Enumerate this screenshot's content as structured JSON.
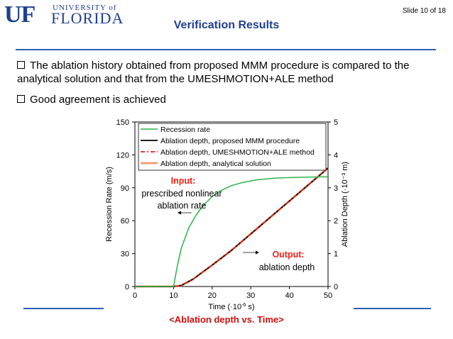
{
  "header": {
    "logo_uf": "UF",
    "logo_university": "UNIVERSITY of",
    "logo_florida": "FLORIDA",
    "slide_number": "Slide 10 of 18",
    "title": "Verification Results"
  },
  "bullets": [
    "The ablation history obtained from proposed MMM procedure is compared to the analytical solution and that from the UMESHMOTION+ALE method",
    "Good agreement is achieved"
  ],
  "chart_data": {
    "type": "line",
    "xlabel_main": "Time (",
    "xlabel_unit": "·10",
    "xlabel_exp": "-6",
    "xlabel_end": " s)",
    "ylabel": "Recession Rate (m/s)",
    "y2label": "Ablation Depth (·10⁻³ m)",
    "xlim": [
      0,
      50
    ],
    "ylim": [
      0,
      150
    ],
    "y2lim": [
      0,
      5
    ],
    "x_ticks": [
      "0",
      "10",
      "20",
      "30",
      "40",
      "50"
    ],
    "y_ticks": [
      "0",
      "30",
      "60",
      "90",
      "120",
      "150"
    ],
    "y2_ticks": [
      "0",
      "1",
      "2",
      "3",
      "4",
      "5"
    ],
    "legend_position": "top-right",
    "series": [
      {
        "name": "Recession rate",
        "axis": "left",
        "color": "#2db34a",
        "x": [
          0,
          10,
          11,
          12,
          14,
          16,
          18,
          20,
          22,
          25,
          28,
          32,
          36,
          40,
          45,
          50
        ],
        "y": [
          0,
          0,
          19,
          35,
          54,
          66,
          75,
          82,
          87,
          92,
          95,
          97.5,
          98.7,
          99.3,
          99.7,
          100
        ]
      },
      {
        "name": "Ablation depth, proposed MMM procedure",
        "axis": "right",
        "color": "#000000",
        "x": [
          0,
          10,
          12,
          15,
          20,
          25,
          30,
          35,
          40,
          45,
          50
        ],
        "y": [
          0,
          0,
          0.03,
          0.22,
          0.65,
          1.1,
          1.6,
          2.1,
          2.6,
          3.1,
          3.6
        ]
      },
      {
        "name": "Ablation depth, UMESHMOTION+ALE method",
        "axis": "right",
        "color": "#e8231c",
        "x": [
          0,
          10,
          12,
          15,
          20,
          25,
          30,
          35,
          40,
          45,
          50
        ],
        "y": [
          0,
          0,
          0.03,
          0.22,
          0.65,
          1.1,
          1.6,
          2.1,
          2.6,
          3.1,
          3.6
        ]
      },
      {
        "name": "Ablation depth, analytical solution",
        "axis": "right",
        "color": "#f0a070",
        "x": [
          0,
          10,
          12,
          15,
          20,
          25,
          30,
          35,
          40,
          45,
          50
        ],
        "y": [
          0,
          0,
          0.03,
          0.22,
          0.65,
          1.1,
          1.6,
          2.1,
          2.6,
          3.1,
          3.6
        ]
      }
    ],
    "annotations": {
      "input_title": "Input:",
      "input_text_1": "prescribed nonlinear",
      "input_text_2": "ablation rate",
      "output_title": "Output:",
      "output_text": "ablation depth"
    }
  },
  "caption": "<Ablation depth vs. Time>",
  "colors": {
    "brand_blue": "#1f3f8f",
    "rule_blue": "#2c5fb3",
    "caption_red": "#cc1111"
  }
}
